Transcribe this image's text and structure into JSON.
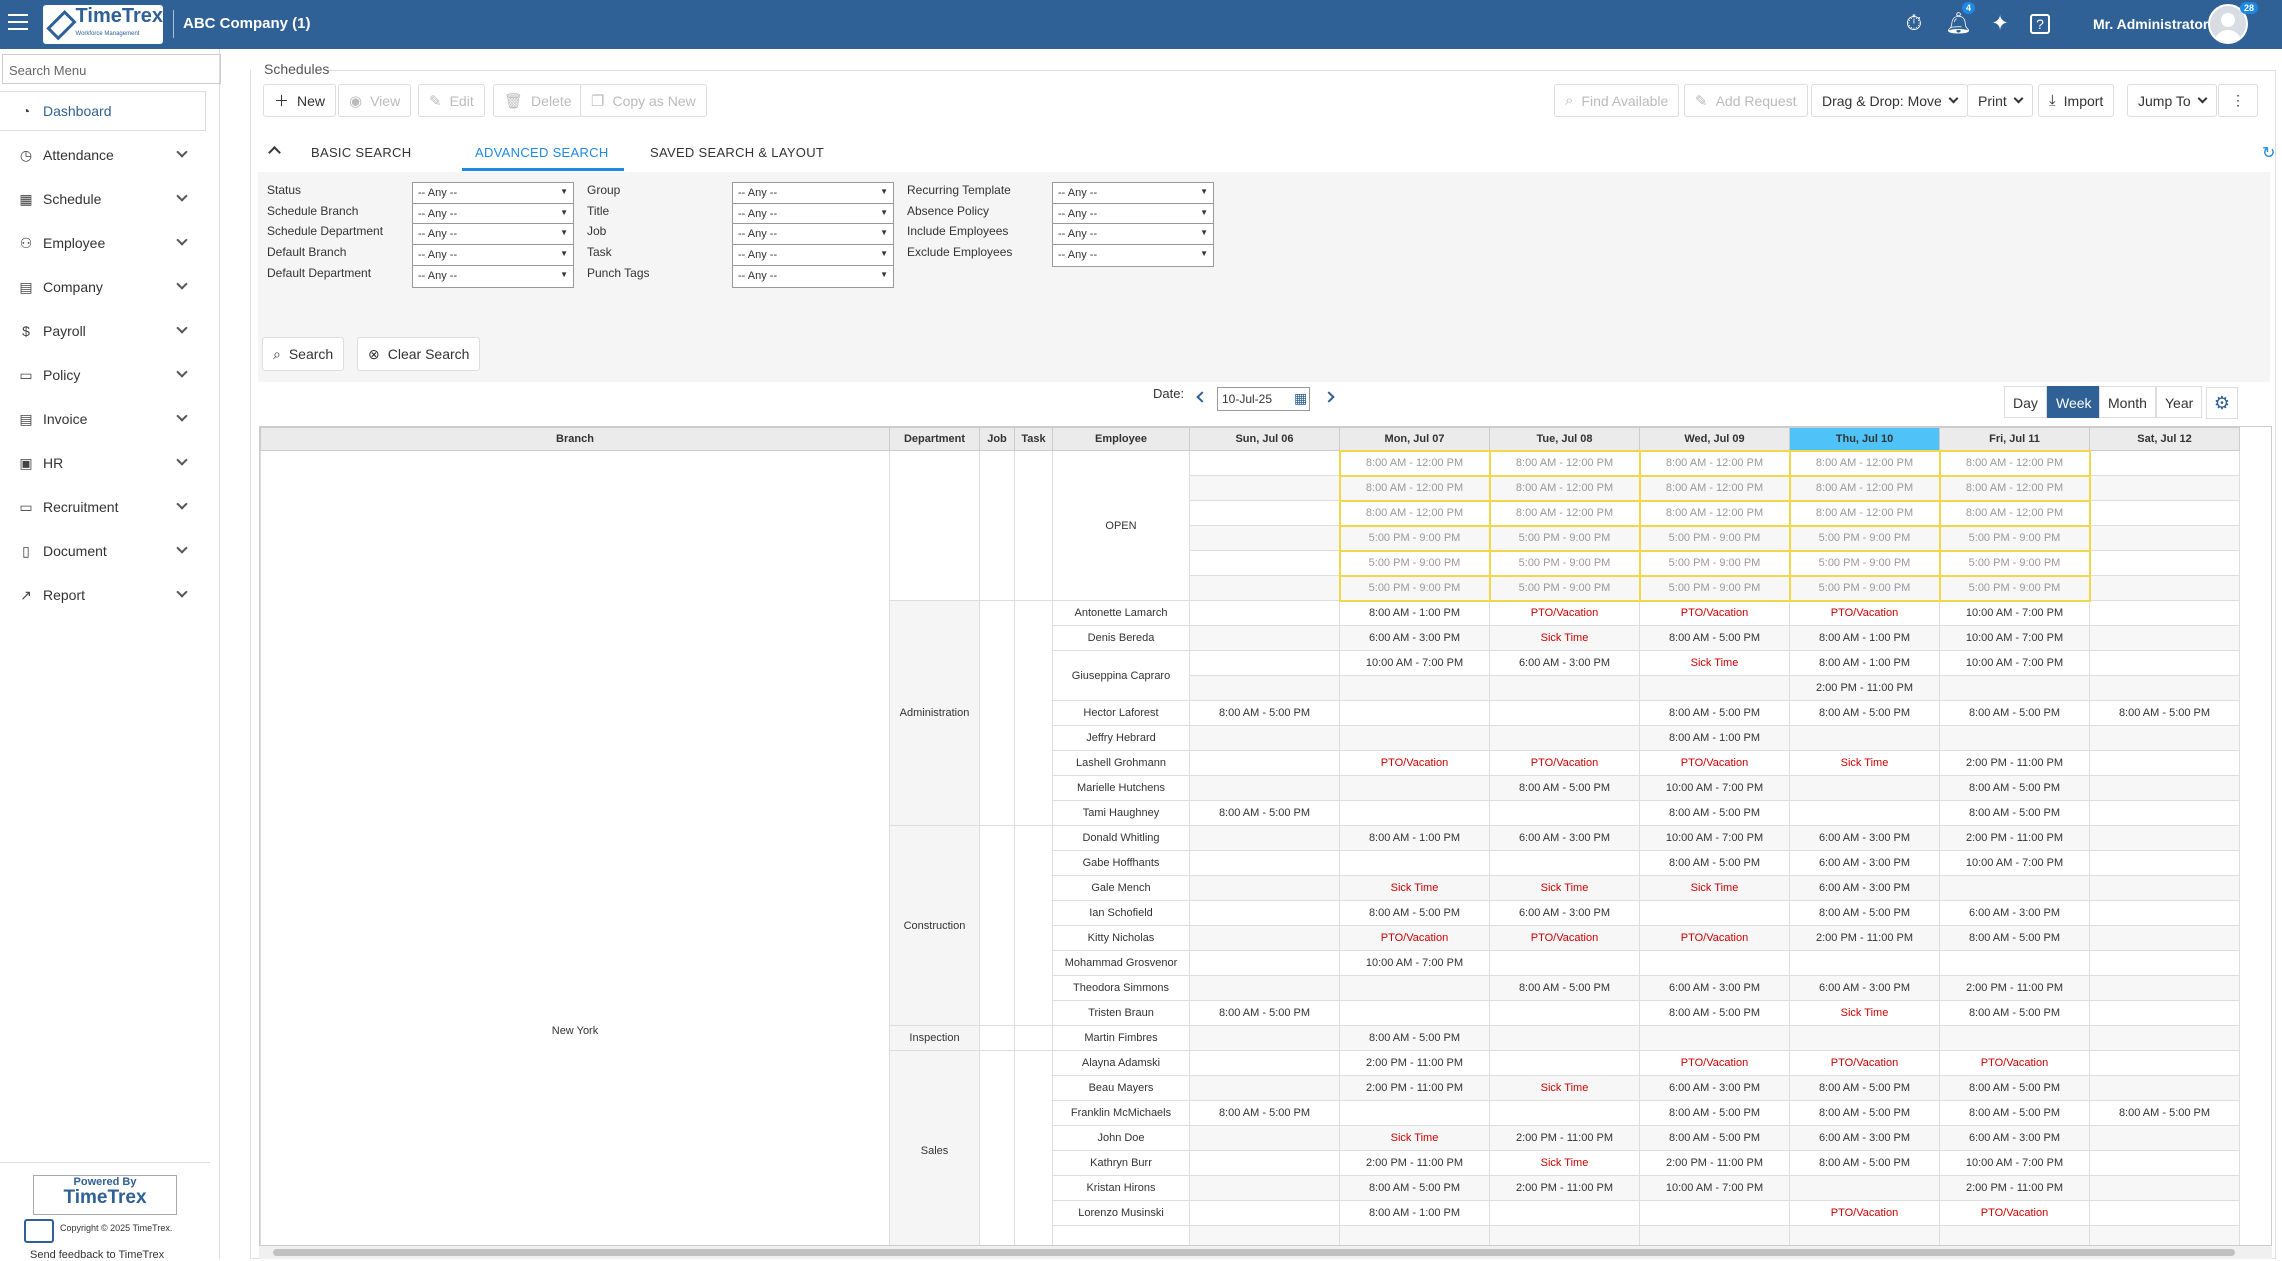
{
  "topbar": {
    "company": "ABC Company (1)",
    "logo_title": "TimeTrex",
    "logo_sub": "Workforce Management",
    "notif_count": "4",
    "avatar_count": "28",
    "user": "Mr. Administrator"
  },
  "sidebar": {
    "search_placeholder": "Search Menu",
    "items": [
      {
        "label": "Dashboard",
        "icon": "gauge-icon"
      },
      {
        "label": "Attendance",
        "icon": "clock-icon"
      },
      {
        "label": "Schedule",
        "icon": "calendar-icon"
      },
      {
        "label": "Employee",
        "icon": "people-icon"
      },
      {
        "label": "Company",
        "icon": "building-icon"
      },
      {
        "label": "Payroll",
        "icon": "dollar-icon"
      },
      {
        "label": "Policy",
        "icon": "folder-icon"
      },
      {
        "label": "Invoice",
        "icon": "document-icon"
      },
      {
        "label": "HR",
        "icon": "briefcase-icon"
      },
      {
        "label": "Recruitment",
        "icon": "id-card-icon"
      },
      {
        "label": "Document",
        "icon": "file-icon"
      },
      {
        "label": "Report",
        "icon": "chart-icon"
      }
    ],
    "powered_by": "Powered By",
    "powered_logo": "TimeTrex",
    "copyright": "Copyright © 2025 TimeTrex.",
    "feedback": "Send feedback to TimeTrex"
  },
  "page": {
    "title": "Schedules"
  },
  "toolbar": {
    "new": "New",
    "view": "View",
    "edit": "Edit",
    "delete": "Delete",
    "copy_as_new": "Copy as New",
    "find_available": "Find Available",
    "add_request": "Add Request",
    "drag_drop": "Drag & Drop: Move",
    "print": "Print",
    "import": "Import",
    "jump_to": "Jump To"
  },
  "tabs": {
    "basic": "BASIC SEARCH",
    "advanced": "ADVANCED SEARCH",
    "saved": "SAVED SEARCH & LAYOUT"
  },
  "filters": {
    "any": "-- Any --",
    "col1": [
      "Status",
      "Schedule Branch",
      "Schedule Department",
      "Default Branch",
      "Default Department"
    ],
    "col2": [
      "Group",
      "Title",
      "Job",
      "Task",
      "Punch Tags"
    ],
    "col3": [
      "Recurring Template",
      "Absence Policy",
      "Include Employees",
      "Exclude Employees"
    ],
    "search": "Search",
    "clear": "Clear Search"
  },
  "datebar": {
    "label": "Date:",
    "value": "10-Jul-25",
    "views": [
      "Day",
      "Week",
      "Month",
      "Year"
    ],
    "active_view": "Week"
  },
  "grid": {
    "headers": [
      "Branch",
      "Department",
      "Job",
      "Task",
      "Employee",
      "Sun, Jul 06",
      "Mon, Jul 07",
      "Tue, Jul 08",
      "Wed, Jul 09",
      "Thu, Jul 10",
      "Fri, Jul 11",
      "Sat, Jul 12"
    ],
    "branch": "New York",
    "open_label": "OPEN",
    "open_rows": [
      [
        "",
        "8:00 AM - 12:00 PM",
        "8:00 AM - 12:00 PM",
        "8:00 AM - 12:00 PM",
        "8:00 AM - 12:00 PM",
        "8:00 AM - 12:00 PM",
        ""
      ],
      [
        "",
        "8:00 AM - 12:00 PM",
        "8:00 AM - 12:00 PM",
        "8:00 AM - 12:00 PM",
        "8:00 AM - 12:00 PM",
        "8:00 AM - 12:00 PM",
        ""
      ],
      [
        "",
        "8:00 AM - 12:00 PM",
        "8:00 AM - 12:00 PM",
        "8:00 AM - 12:00 PM",
        "8:00 AM - 12:00 PM",
        "8:00 AM - 12:00 PM",
        ""
      ],
      [
        "",
        "5:00 PM - 9:00 PM",
        "5:00 PM - 9:00 PM",
        "5:00 PM - 9:00 PM",
        "5:00 PM - 9:00 PM",
        "5:00 PM - 9:00 PM",
        ""
      ],
      [
        "",
        "5:00 PM - 9:00 PM",
        "5:00 PM - 9:00 PM",
        "5:00 PM - 9:00 PM",
        "5:00 PM - 9:00 PM",
        "5:00 PM - 9:00 PM",
        ""
      ],
      [
        "",
        "5:00 PM - 9:00 PM",
        "5:00 PM - 9:00 PM",
        "5:00 PM - 9:00 PM",
        "5:00 PM - 9:00 PM",
        "5:00 PM - 9:00 PM",
        ""
      ]
    ],
    "departments": [
      {
        "name": "Administration",
        "rows": [
          {
            "emp": "Antonette Lamarch",
            "d": [
              "",
              "8:00 AM - 1:00 PM",
              "PTO/Vacation",
              "PTO/Vacation",
              "PTO/Vacation",
              "10:00 AM - 7:00 PM",
              ""
            ]
          },
          {
            "emp": "Denis Bereda",
            "d": [
              "",
              "6:00 AM - 3:00 PM",
              "Sick Time",
              "8:00 AM - 5:00 PM",
              "8:00 AM - 1:00 PM",
              "10:00 AM - 7:00 PM",
              ""
            ]
          },
          {
            "emp": "Giuseppina Capraro",
            "span": 2,
            "d": [
              "",
              "10:00 AM - 7:00 PM",
              "6:00 AM - 3:00 PM",
              "Sick Time",
              "8:00 AM - 1:00 PM",
              "10:00 AM - 7:00 PM",
              ""
            ]
          },
          {
            "emp": "",
            "cont": true,
            "d": [
              "",
              "",
              "",
              "",
              "2:00 PM - 11:00 PM",
              "",
              ""
            ]
          },
          {
            "emp": "Hector Laforest",
            "d": [
              "8:00 AM - 5:00 PM",
              "",
              "",
              "8:00 AM - 5:00 PM",
              "8:00 AM - 5:00 PM",
              "8:00 AM - 5:00 PM",
              "8:00 AM - 5:00 PM"
            ]
          },
          {
            "emp": "Jeffry Hebrard",
            "d": [
              "",
              "",
              "",
              "8:00 AM - 1:00 PM",
              "",
              "",
              ""
            ]
          },
          {
            "emp": "Lashell Grohmann",
            "d": [
              "",
              "PTO/Vacation",
              "PTO/Vacation",
              "PTO/Vacation",
              "Sick Time",
              "2:00 PM - 11:00 PM",
              ""
            ]
          },
          {
            "emp": "Marielle Hutchens",
            "d": [
              "",
              "",
              "8:00 AM - 5:00 PM",
              "10:00 AM - 7:00 PM",
              "",
              "8:00 AM - 5:00 PM",
              ""
            ]
          },
          {
            "emp": "Tami Haughney",
            "d": [
              "8:00 AM - 5:00 PM",
              "",
              "",
              "8:00 AM - 5:00 PM",
              "",
              "8:00 AM - 5:00 PM",
              ""
            ]
          }
        ]
      },
      {
        "name": "Construction",
        "rows": [
          {
            "emp": "Donald Whitling",
            "d": [
              "",
              "8:00 AM - 1:00 PM",
              "6:00 AM - 3:00 PM",
              "10:00 AM - 7:00 PM",
              "6:00 AM - 3:00 PM",
              "2:00 PM - 11:00 PM",
              ""
            ]
          },
          {
            "emp": "Gabe Hoffhants",
            "d": [
              "",
              "",
              "",
              "8:00 AM - 5:00 PM",
              "6:00 AM - 3:00 PM",
              "10:00 AM - 7:00 PM",
              ""
            ]
          },
          {
            "emp": "Gale Mench",
            "d": [
              "",
              "Sick Time",
              "Sick Time",
              "Sick Time",
              "6:00 AM - 3:00 PM",
              "",
              ""
            ]
          },
          {
            "emp": "Ian Schofield",
            "d": [
              "",
              "8:00 AM - 5:00 PM",
              "6:00 AM - 3:00 PM",
              "",
              "8:00 AM - 5:00 PM",
              "6:00 AM - 3:00 PM",
              ""
            ]
          },
          {
            "emp": "Kitty Nicholas",
            "d": [
              "",
              "PTO/Vacation",
              "PTO/Vacation",
              "PTO/Vacation",
              "2:00 PM - 11:00 PM",
              "8:00 AM - 5:00 PM",
              ""
            ]
          },
          {
            "emp": "Mohammad Grosvenor",
            "d": [
              "",
              "10:00 AM - 7:00 PM",
              "",
              "",
              "",
              "",
              ""
            ]
          },
          {
            "emp": "Theodora Simmons",
            "d": [
              "",
              "",
              "8:00 AM - 5:00 PM",
              "6:00 AM - 3:00 PM",
              "6:00 AM - 3:00 PM",
              "2:00 PM - 11:00 PM",
              ""
            ]
          },
          {
            "emp": "Tristen Braun",
            "d": [
              "8:00 AM - 5:00 PM",
              "",
              "",
              "8:00 AM - 5:00 PM",
              "Sick Time",
              "8:00 AM - 5:00 PM",
              ""
            ]
          }
        ]
      },
      {
        "name": "Inspection",
        "rows": [
          {
            "emp": "Martin Fimbres",
            "d": [
              "",
              "8:00 AM - 5:00 PM",
              "",
              "",
              "",
              "",
              ""
            ]
          }
        ]
      },
      {
        "name": "Sales",
        "rows": [
          {
            "emp": "Alayna Adamski",
            "d": [
              "",
              "2:00 PM - 11:00 PM",
              "",
              "PTO/Vacation",
              "PTO/Vacation",
              "PTO/Vacation",
              ""
            ]
          },
          {
            "emp": "Beau Mayers",
            "d": [
              "",
              "2:00 PM - 11:00 PM",
              "Sick Time",
              "6:00 AM - 3:00 PM",
              "8:00 AM - 5:00 PM",
              "8:00 AM - 5:00 PM",
              ""
            ]
          },
          {
            "emp": "Franklin McMichaels",
            "d": [
              "8:00 AM - 5:00 PM",
              "",
              "",
              "8:00 AM - 5:00 PM",
              "8:00 AM - 5:00 PM",
              "8:00 AM - 5:00 PM",
              "8:00 AM - 5:00 PM"
            ]
          },
          {
            "emp": "John Doe",
            "d": [
              "",
              "Sick Time",
              "2:00 PM - 11:00 PM",
              "8:00 AM - 5:00 PM",
              "6:00 AM - 3:00 PM",
              "6:00 AM - 3:00 PM",
              ""
            ]
          },
          {
            "emp": "Kathryn Burr",
            "d": [
              "",
              "2:00 PM - 11:00 PM",
              "Sick Time",
              "2:00 PM - 11:00 PM",
              "8:00 AM - 5:00 PM",
              "10:00 AM - 7:00 PM",
              ""
            ]
          },
          {
            "emp": "Kristan Hirons",
            "d": [
              "",
              "8:00 AM - 5:00 PM",
              "2:00 PM - 11:00 PM",
              "10:00 AM - 7:00 PM",
              "",
              "2:00 PM - 11:00 PM",
              ""
            ]
          },
          {
            "emp": "Lorenzo Musinski",
            "d": [
              "",
              "8:00 AM - 1:00 PM",
              "",
              "",
              "PTO/Vacation",
              "PTO/Vacation",
              ""
            ]
          },
          {
            "emp": "",
            "d": [
              "",
              "",
              "",
              "",
              "",
              "",
              ""
            ]
          }
        ]
      }
    ]
  }
}
